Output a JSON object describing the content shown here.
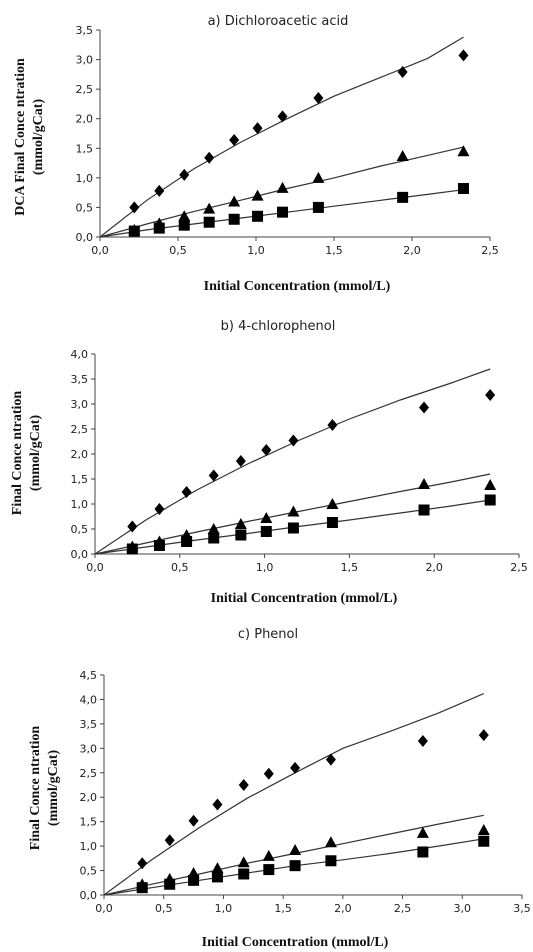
{
  "chart_data": [
    {
      "type": "scatter",
      "title": "a) Dichloroacetic acid",
      "xlabel": "Initial Concentration (mmol/L)",
      "ylabel_lines": [
        "DCA Final Conce ntration",
        "(mmol/gCat)"
      ],
      "xlim": [
        0,
        2.5
      ],
      "ylim": [
        0,
        3.5
      ],
      "xticks": [
        "0,0",
        "0,5",
        "1,0",
        "1,5",
        "2,0",
        "2,5"
      ],
      "yticks": [
        "0,0",
        "0,5",
        "1,0",
        "1,5",
        "2,0",
        "2,5",
        "3,0",
        "3,5"
      ],
      "series": [
        {
          "marker": "diamond",
          "points": [
            [
              0.22,
              0.5
            ],
            [
              0.38,
              0.78
            ],
            [
              0.54,
              1.05
            ],
            [
              0.7,
              1.34
            ],
            [
              0.86,
              1.64
            ],
            [
              1.01,
              1.84
            ],
            [
              1.17,
              2.04
            ],
            [
              1.4,
              2.35
            ],
            [
              1.94,
              2.79
            ],
            [
              2.33,
              3.07
            ]
          ],
          "fit": [
            [
              0,
              0
            ],
            [
              0.3,
              0.62
            ],
            [
              0.6,
              1.15
            ],
            [
              0.9,
              1.6
            ],
            [
              1.2,
              2.0
            ],
            [
              1.5,
              2.38
            ],
            [
              1.8,
              2.7
            ],
            [
              2.1,
              3.02
            ],
            [
              2.33,
              3.38
            ]
          ]
        },
        {
          "marker": "triangle",
          "points": [
            [
              0.22,
              0.12
            ],
            [
              0.38,
              0.23
            ],
            [
              0.54,
              0.35
            ],
            [
              0.7,
              0.48
            ],
            [
              0.86,
              0.6
            ],
            [
              1.01,
              0.7
            ],
            [
              1.17,
              0.83
            ],
            [
              1.4,
              1.0
            ],
            [
              1.94,
              1.37
            ],
            [
              2.33,
              1.45
            ]
          ],
          "fit": [
            [
              0,
              0
            ],
            [
              0.3,
              0.22
            ],
            [
              0.6,
              0.43
            ],
            [
              0.9,
              0.62
            ],
            [
              1.2,
              0.82
            ],
            [
              1.5,
              1.0
            ],
            [
              1.8,
              1.2
            ],
            [
              2.1,
              1.38
            ],
            [
              2.33,
              1.52
            ]
          ]
        },
        {
          "marker": "square",
          "points": [
            [
              0.22,
              0.1
            ],
            [
              0.38,
              0.15
            ],
            [
              0.54,
              0.2
            ],
            [
              0.7,
              0.25
            ],
            [
              0.86,
              0.3
            ],
            [
              1.01,
              0.35
            ],
            [
              1.17,
              0.42
            ],
            [
              1.4,
              0.5
            ],
            [
              1.94,
              0.67
            ],
            [
              2.33,
              0.82
            ]
          ],
          "fit": [
            [
              0,
              0
            ],
            [
              0.3,
              0.12
            ],
            [
              0.6,
              0.22
            ],
            [
              0.9,
              0.32
            ],
            [
              1.2,
              0.42
            ],
            [
              1.5,
              0.52
            ],
            [
              1.8,
              0.62
            ],
            [
              2.1,
              0.72
            ],
            [
              2.33,
              0.8
            ]
          ]
        }
      ]
    },
    {
      "type": "scatter",
      "title": "b) 4-chlorophenol",
      "xlabel": "Initial Concentration (mmol/L)",
      "ylabel_lines": [
        "Final Conce ntration",
        "(mmol/gCat)"
      ],
      "xlim": [
        0,
        2.5
      ],
      "ylim": [
        0,
        4.0
      ],
      "xticks": [
        "0,0",
        "0,5",
        "1,0",
        "1,5",
        "2,0",
        "2,5"
      ],
      "yticks": [
        "0,0",
        "0,5",
        "1,0",
        "1,5",
        "2,0",
        "2,5",
        "3,0",
        "3,5",
        "4,0"
      ],
      "series": [
        {
          "marker": "diamond",
          "points": [
            [
              0.22,
              0.55
            ],
            [
              0.38,
              0.9
            ],
            [
              0.54,
              1.24
            ],
            [
              0.7,
              1.57
            ],
            [
              0.86,
              1.86
            ],
            [
              1.01,
              2.08
            ],
            [
              1.17,
              2.27
            ],
            [
              1.4,
              2.58
            ],
            [
              1.94,
              2.93
            ],
            [
              2.33,
              3.18
            ]
          ],
          "fit": [
            [
              0,
              0
            ],
            [
              0.3,
              0.68
            ],
            [
              0.6,
              1.28
            ],
            [
              0.9,
              1.8
            ],
            [
              1.2,
              2.27
            ],
            [
              1.5,
              2.7
            ],
            [
              1.8,
              3.08
            ],
            [
              2.1,
              3.42
            ],
            [
              2.33,
              3.7
            ]
          ]
        },
        {
          "marker": "triangle",
          "points": [
            [
              0.22,
              0.15
            ],
            [
              0.38,
              0.25
            ],
            [
              0.54,
              0.38
            ],
            [
              0.7,
              0.5
            ],
            [
              0.86,
              0.6
            ],
            [
              1.01,
              0.72
            ],
            [
              1.17,
              0.85
            ],
            [
              1.4,
              1.0
            ],
            [
              1.94,
              1.4
            ],
            [
              2.33,
              1.38
            ]
          ],
          "fit": [
            [
              0,
              0
            ],
            [
              0.3,
              0.22
            ],
            [
              0.6,
              0.44
            ],
            [
              0.9,
              0.65
            ],
            [
              1.2,
              0.85
            ],
            [
              1.5,
              1.05
            ],
            [
              1.8,
              1.25
            ],
            [
              2.1,
              1.44
            ],
            [
              2.33,
              1.6
            ]
          ]
        },
        {
          "marker": "square",
          "points": [
            [
              0.22,
              0.1
            ],
            [
              0.38,
              0.17
            ],
            [
              0.54,
              0.25
            ],
            [
              0.7,
              0.32
            ],
            [
              0.86,
              0.38
            ],
            [
              1.01,
              0.45
            ],
            [
              1.17,
              0.52
            ],
            [
              1.4,
              0.63
            ],
            [
              1.94,
              0.88
            ],
            [
              2.33,
              1.08
            ]
          ],
          "fit": [
            [
              0,
              0
            ],
            [
              0.3,
              0.14
            ],
            [
              0.6,
              0.28
            ],
            [
              0.9,
              0.41
            ],
            [
              1.2,
              0.55
            ],
            [
              1.5,
              0.68
            ],
            [
              1.8,
              0.82
            ],
            [
              2.1,
              0.96
            ],
            [
              2.33,
              1.08
            ]
          ]
        }
      ]
    },
    {
      "type": "scatter",
      "title": "c) Phenol",
      "xlabel": "Initial Concentration (mmol/L)",
      "ylabel_lines": [
        "Final Conce ntration",
        "(mmol/gCat)"
      ],
      "xlim": [
        0,
        3.5
      ],
      "ylim": [
        0,
        4.5
      ],
      "xticks": [
        "0,0",
        "0,5",
        "1,0",
        "1,5",
        "2,0",
        "2,5",
        "3,0",
        "3,5"
      ],
      "yticks": [
        "0,0",
        "0,5",
        "1,0",
        "1,5",
        "2,0",
        "2,5",
        "3,0",
        "3,5",
        "4,0",
        "4,5"
      ],
      "series": [
        {
          "marker": "diamond",
          "points": [
            [
              0.32,
              0.65
            ],
            [
              0.55,
              1.12
            ],
            [
              0.75,
              1.52
            ],
            [
              0.95,
              1.85
            ],
            [
              1.17,
              2.25
            ],
            [
              1.38,
              2.48
            ],
            [
              1.6,
              2.6
            ],
            [
              1.9,
              2.77
            ],
            [
              2.67,
              3.15
            ],
            [
              3.18,
              3.27
            ]
          ],
          "fit": [
            [
              0,
              0
            ],
            [
              0.4,
              0.72
            ],
            [
              0.8,
              1.38
            ],
            [
              1.2,
              1.98
            ],
            [
              1.6,
              2.5
            ],
            [
              2.0,
              3.0
            ],
            [
              2.4,
              3.35
            ],
            [
              2.8,
              3.72
            ],
            [
              3.18,
              4.12
            ]
          ]
        },
        {
          "marker": "triangle",
          "points": [
            [
              0.32,
              0.22
            ],
            [
              0.55,
              0.33
            ],
            [
              0.75,
              0.45
            ],
            [
              0.95,
              0.55
            ],
            [
              1.17,
              0.67
            ],
            [
              1.38,
              0.8
            ],
            [
              1.6,
              0.92
            ],
            [
              1.9,
              1.08
            ],
            [
              2.67,
              1.27
            ],
            [
              3.18,
              1.33
            ]
          ],
          "fit": [
            [
              0,
              0
            ],
            [
              0.4,
              0.22
            ],
            [
              0.8,
              0.43
            ],
            [
              1.2,
              0.65
            ],
            [
              1.6,
              0.85
            ],
            [
              2.0,
              1.05
            ],
            [
              2.4,
              1.25
            ],
            [
              2.8,
              1.45
            ],
            [
              3.18,
              1.63
            ]
          ]
        },
        {
          "marker": "square",
          "points": [
            [
              0.32,
              0.15
            ],
            [
              0.55,
              0.22
            ],
            [
              0.75,
              0.3
            ],
            [
              0.95,
              0.37
            ],
            [
              1.17,
              0.43
            ],
            [
              1.38,
              0.52
            ],
            [
              1.6,
              0.6
            ],
            [
              1.9,
              0.7
            ],
            [
              2.67,
              0.88
            ],
            [
              3.18,
              1.1
            ]
          ],
          "fit": [
            [
              0,
              0
            ],
            [
              0.4,
              0.15
            ],
            [
              0.8,
              0.3
            ],
            [
              1.2,
              0.45
            ],
            [
              1.6,
              0.6
            ],
            [
              2.0,
              0.72
            ],
            [
              2.4,
              0.85
            ],
            [
              2.8,
              1.0
            ],
            [
              3.18,
              1.15
            ]
          ]
        }
      ]
    }
  ]
}
